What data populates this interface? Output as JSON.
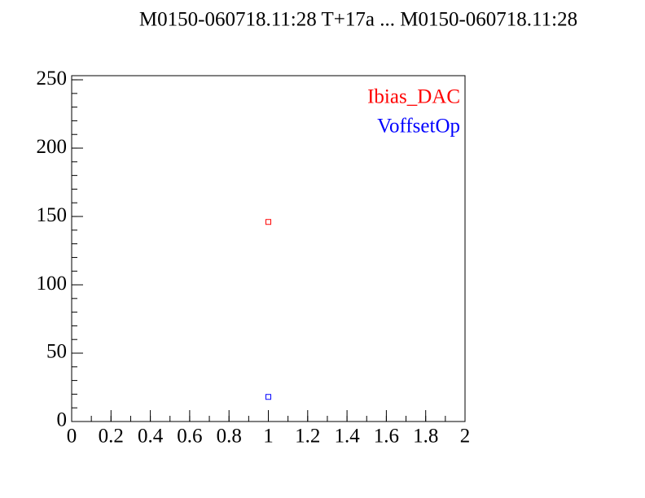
{
  "chart_data": {
    "type": "scatter",
    "title": "M0150-060718.11:28 T+17a ... M0150-060718.11:28",
    "series": [
      {
        "name": "Ibias_DAC",
        "color": "#ff0000",
        "x": [
          1
        ],
        "values": [
          146
        ]
      },
      {
        "name": "VoffsetOp",
        "color": "#0000ff",
        "x": [
          1
        ],
        "values": [
          18
        ]
      }
    ],
    "xlim": [
      0,
      2
    ],
    "xticks": [
      0,
      0.2,
      0.4,
      0.6,
      0.8,
      1,
      1.2,
      1.4,
      1.6,
      1.8,
      2
    ],
    "ylim": [
      0,
      253
    ],
    "yticks": [
      0,
      50,
      100,
      150,
      200,
      250
    ],
    "legend": "top-right",
    "grid": false
  }
}
